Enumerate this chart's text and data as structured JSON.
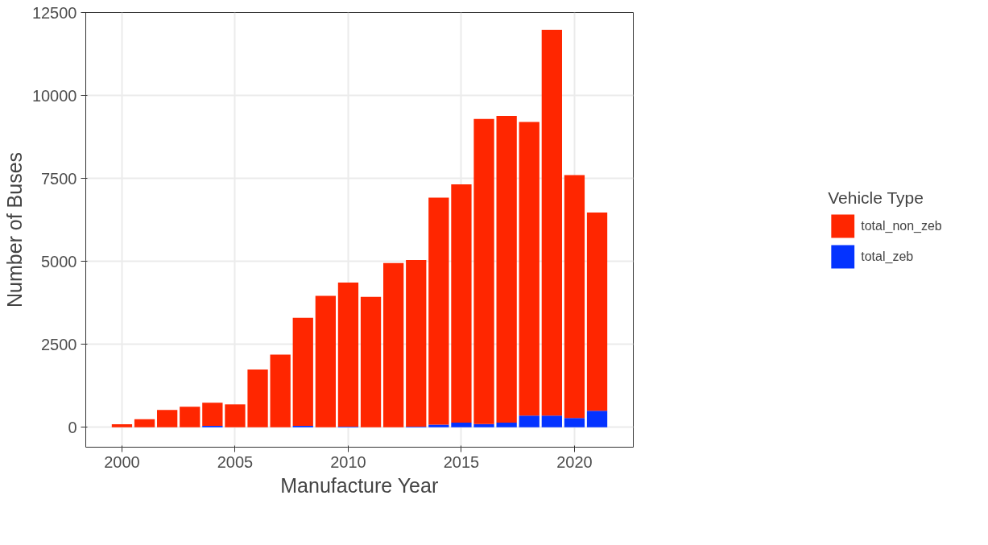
{
  "chart_data": {
    "type": "bar",
    "stacked": true,
    "xlabel": "Manufacture Year",
    "ylabel": "Number of Buses",
    "legend_title": "Vehicle Type",
    "legend": "right",
    "grid": true,
    "x": [
      2000,
      2001,
      2002,
      2003,
      2004,
      2005,
      2006,
      2007,
      2008,
      2009,
      2010,
      2011,
      2012,
      2013,
      2014,
      2015,
      2016,
      2017,
      2018,
      2019,
      2020,
      2021
    ],
    "xlim": [
      1998.4,
      2022.6
    ],
    "xticks": [
      2000,
      2005,
      2010,
      2015,
      2020
    ],
    "ylim": [
      -600,
      12500
    ],
    "yticks": [
      0,
      2500,
      5000,
      7500,
      10000,
      12500
    ],
    "series": [
      {
        "name": "total_zeb",
        "color": "#0433ff",
        "values": [
          0,
          0,
          0,
          0,
          40,
          0,
          0,
          0,
          40,
          0,
          20,
          0,
          0,
          20,
          80,
          140,
          100,
          140,
          350,
          350,
          280,
          500
        ]
      },
      {
        "name": "total_non_zeb",
        "color": "#ff2600",
        "values": [
          90,
          240,
          520,
          620,
          700,
          690,
          1740,
          2190,
          3260,
          3960,
          4340,
          3930,
          4950,
          5020,
          6840,
          7180,
          9190,
          9240,
          8850,
          11630,
          7320,
          5970
        ]
      }
    ]
  }
}
